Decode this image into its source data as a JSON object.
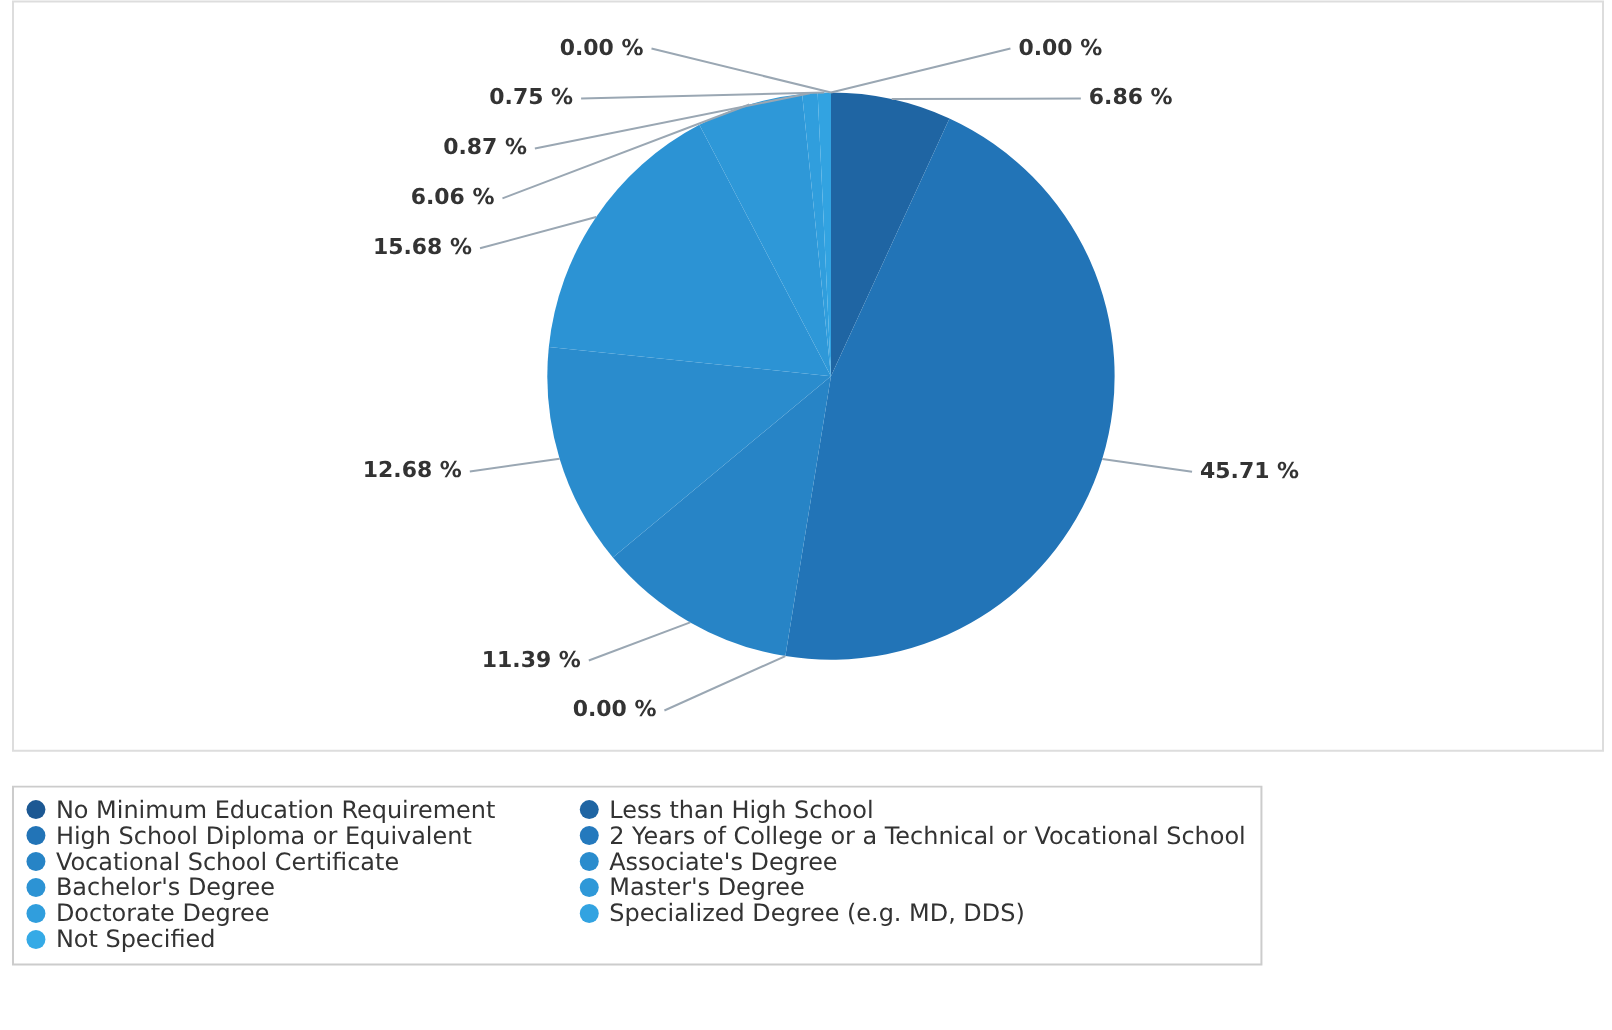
{
  "chart_data": {
    "type": "pie",
    "categories": [
      "No Minimum Education Requirement",
      "Less than High School",
      "High School Diploma or Equivalent",
      "2 Years of College or a Technical or Vocational School",
      "Vocational School Certificate",
      "Associate's Degree",
      "Bachelor's Degree",
      "Master's Degree",
      "Doctorate Degree",
      "Specialized Degree (e.g. MD, DDS)",
      "Not Specified"
    ],
    "values": [
      0.0,
      6.86,
      45.71,
      0.0,
      11.39,
      12.68,
      15.68,
      6.06,
      0.87,
      0.75,
      0.0
    ],
    "value_labels": [
      "0.00 %",
      "6.86 %",
      "45.71 %",
      "0.00 %",
      "11.39 %",
      "12.68 %",
      "15.68 %",
      "6.06 %",
      "0.87 %",
      "0.75 %",
      "0.00 %"
    ],
    "colors": [
      "#1c5893",
      "#1f65a3",
      "#2274b7",
      "#2479bd",
      "#2784c6",
      "#2a8ccd",
      "#2c93d4",
      "#2e98d8",
      "#309edd",
      "#32a3e1",
      "#35aae6"
    ],
    "legend": "bottom"
  }
}
